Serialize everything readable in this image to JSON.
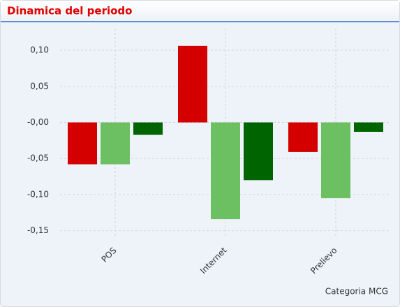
{
  "chart_data": {
    "type": "bar",
    "title": "Dinamica del periodo",
    "x_label": "Categoria MCG",
    "categories": [
      "POS",
      "Internet",
      "Prelievo"
    ],
    "series": [
      {
        "color": "#d40000",
        "values": [
          -0.058,
          0.106,
          -0.041
        ]
      },
      {
        "color": "#6cc062",
        "values": [
          -0.058,
          -0.134,
          -0.105
        ]
      },
      {
        "color": "#006400",
        "values": [
          -0.017,
          -0.08,
          -0.013
        ]
      }
    ],
    "ylim": [
      -0.16,
      0.13
    ],
    "yticks": [
      {
        "value": 0.1,
        "label": "0,10"
      },
      {
        "value": 0.05,
        "label": "0,05"
      },
      {
        "value": 0,
        "label": "-0,00"
      },
      {
        "value": -0.05,
        "label": "-0,05"
      },
      {
        "value": -0.1,
        "label": "-0,10"
      },
      {
        "value": -0.15,
        "label": "-0,15"
      }
    ],
    "grid": true
  }
}
